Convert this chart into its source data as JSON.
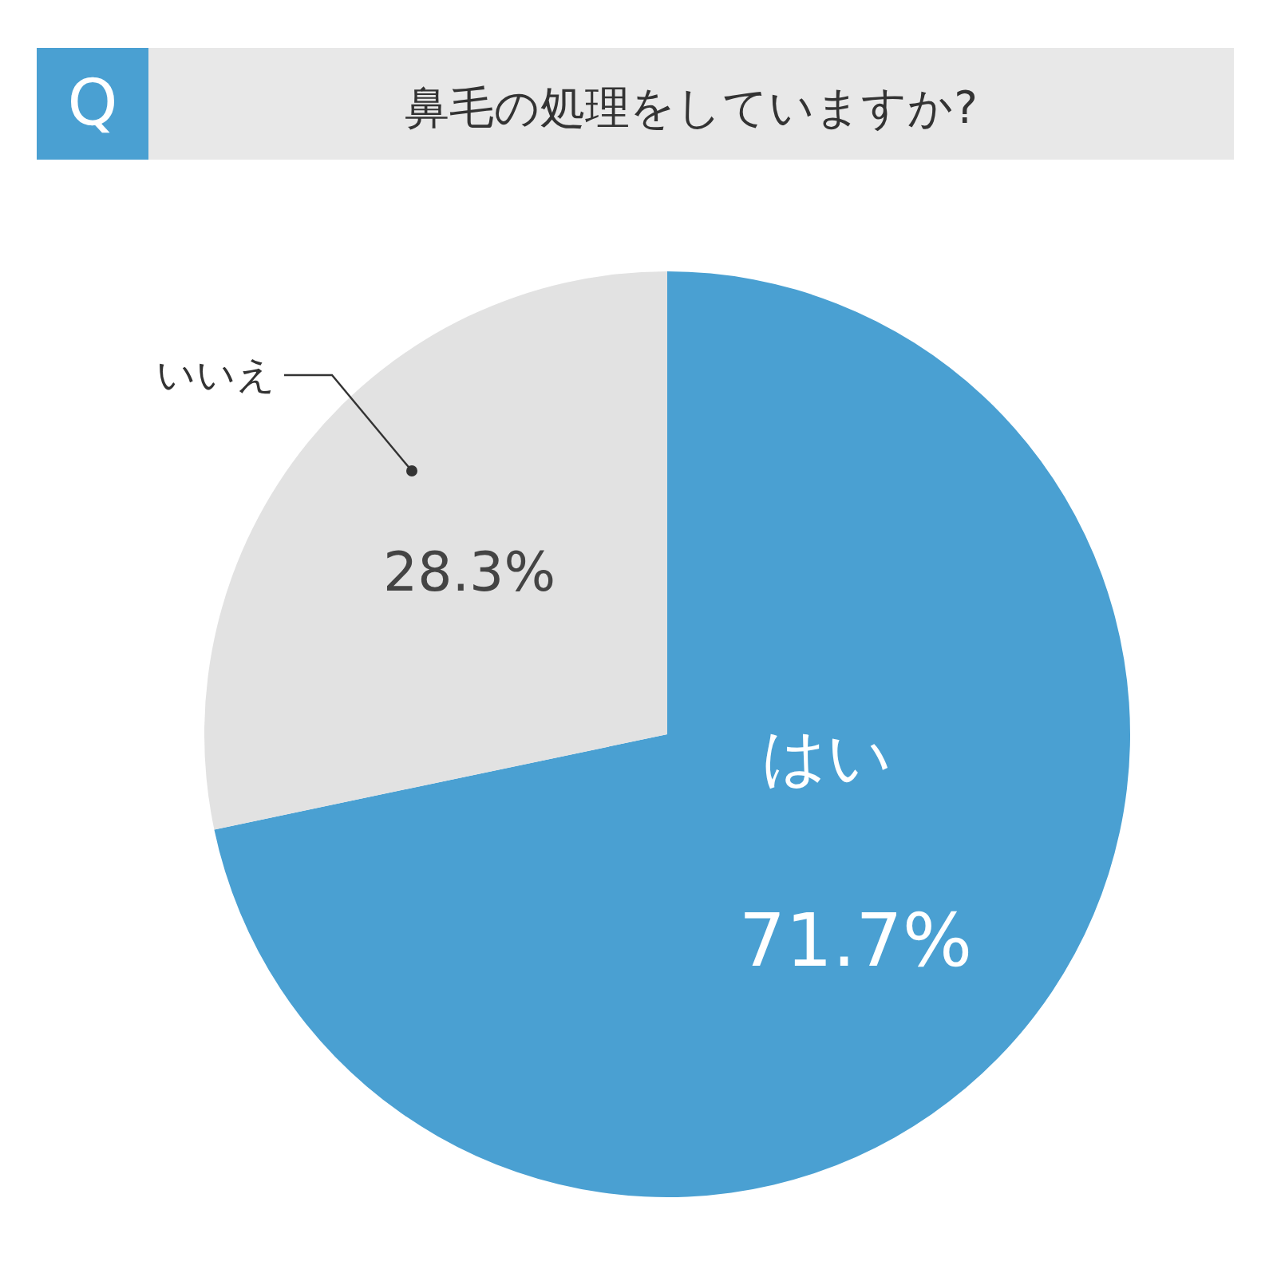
{
  "chart_data": {
    "type": "pie",
    "title": "鼻毛の処理をしていますか?",
    "annotations": [
      "Q"
    ],
    "categories": [
      "はい",
      "いいえ"
    ],
    "values": [
      71.7,
      28.3
    ],
    "colors": [
      "#4aa0d2",
      "#e2e2e2"
    ],
    "value_labels": [
      "71.7%",
      "28.3%"
    ],
    "legend": false
  }
}
